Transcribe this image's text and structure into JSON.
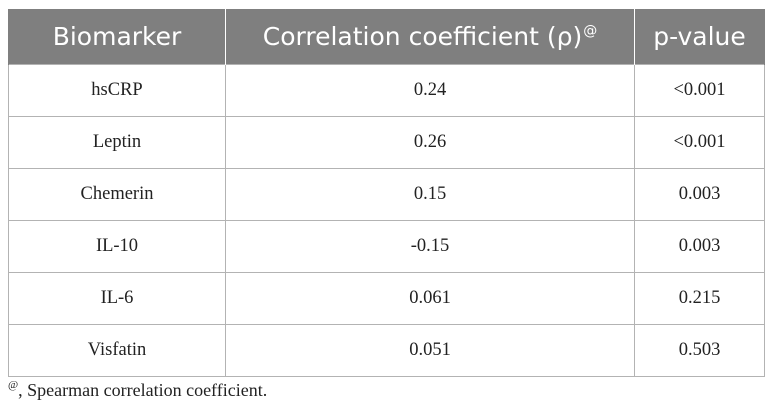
{
  "table": {
    "headers": {
      "biomarker": "Biomarker",
      "correlation": "Correlation coefficient (ρ)",
      "correlation_sup": "@",
      "pvalue": "p-value"
    },
    "rows": [
      {
        "biomarker": "hsCRP",
        "rho": "0.24",
        "p": "<0.001"
      },
      {
        "biomarker": "Leptin",
        "rho": "0.26",
        "p": "<0.001"
      },
      {
        "biomarker": "Chemerin",
        "rho": "0.15",
        "p": "0.003"
      },
      {
        "biomarker": "IL-10",
        "rho": "-0.15",
        "p": "0.003"
      },
      {
        "biomarker": "IL-6",
        "rho": "0.061",
        "p": "0.215"
      },
      {
        "biomarker": "Visfatin",
        "rho": "0.051",
        "p": "0.503"
      }
    ]
  },
  "footnote": {
    "marker": "@",
    "text": ", Spearman correlation coefficient."
  },
  "colors": {
    "header_bg": "#7f7f7f",
    "header_text": "#ffffff",
    "border": "#b3b3b3"
  }
}
